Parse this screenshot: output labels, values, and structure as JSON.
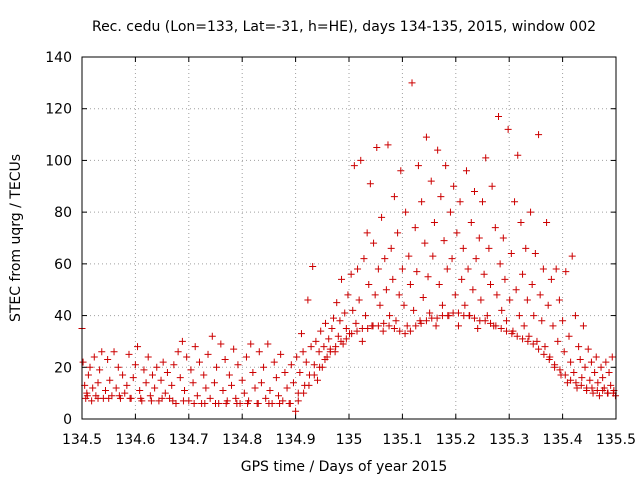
{
  "chart_data": {
    "type": "scatter",
    "title": "Rec. cedu (Lon=133, Lat=-31, h=HE), days 134-135, 2015, window 002",
    "xlabel": "GPS time / Days of year 2015",
    "ylabel": "STEC from uqrg / TECUs",
    "xlim": [
      134.5,
      135.5
    ],
    "ylim": [
      0,
      140
    ],
    "x_ticks": [
      "134.5",
      "134.6",
      "134.7",
      "134.8",
      "134.9",
      "135",
      "135.1",
      "135.2",
      "135.3",
      "135.4",
      "135.5"
    ],
    "y_ticks": [
      "0",
      "20",
      "40",
      "60",
      "80",
      "100",
      "120",
      "140"
    ],
    "grid": true,
    "marker": "+",
    "marker_color": "#cc0000",
    "grid_color": "#a0a0a0",
    "points": [
      [
        134.5,
        35
      ],
      [
        134.502,
        22
      ],
      [
        134.505,
        13
      ],
      [
        134.507,
        8
      ],
      [
        134.509,
        10
      ],
      [
        134.512,
        17
      ],
      [
        134.515,
        20
      ],
      [
        134.518,
        7
      ],
      [
        134.52,
        12
      ],
      [
        134.523,
        24
      ],
      [
        134.526,
        9
      ],
      [
        134.53,
        14
      ],
      [
        134.533,
        19
      ],
      [
        134.537,
        26
      ],
      [
        134.54,
        8
      ],
      [
        134.544,
        11
      ],
      [
        134.548,
        23
      ],
      [
        134.552,
        15
      ],
      [
        134.556,
        9
      ],
      [
        134.56,
        26
      ],
      [
        134.564,
        12
      ],
      [
        134.568,
        20
      ],
      [
        134.572,
        8
      ],
      [
        134.576,
        17
      ],
      [
        134.58,
        10
      ],
      [
        134.584,
        13
      ],
      [
        134.588,
        25
      ],
      [
        134.592,
        8
      ],
      [
        134.596,
        16
      ],
      [
        134.6,
        21
      ],
      [
        134.604,
        28
      ],
      [
        134.608,
        11
      ],
      [
        134.612,
        7
      ],
      [
        134.616,
        19
      ],
      [
        134.62,
        14
      ],
      [
        134.624,
        24
      ],
      [
        134.628,
        9
      ],
      [
        134.632,
        17
      ],
      [
        134.636,
        12
      ],
      [
        134.64,
        20
      ],
      [
        134.644,
        7
      ],
      [
        134.648,
        15
      ],
      [
        134.652,
        22
      ],
      [
        134.656,
        10
      ],
      [
        134.66,
        18
      ],
      [
        134.664,
        8
      ],
      [
        134.668,
        13
      ],
      [
        134.672,
        21
      ],
      [
        134.676,
        6
      ],
      [
        134.68,
        26
      ],
      [
        134.684,
        16
      ],
      [
        134.688,
        30
      ],
      [
        134.692,
        11
      ],
      [
        134.696,
        24
      ],
      [
        134.7,
        7
      ],
      [
        134.704,
        19
      ],
      [
        134.708,
        14
      ],
      [
        134.712,
        28
      ],
      [
        134.716,
        9
      ],
      [
        134.72,
        22
      ],
      [
        134.724,
        6
      ],
      [
        134.728,
        17
      ],
      [
        134.732,
        12
      ],
      [
        134.736,
        25
      ],
      [
        134.74,
        8
      ],
      [
        134.744,
        32
      ],
      [
        134.748,
        14
      ],
      [
        134.752,
        20
      ],
      [
        134.756,
        6
      ],
      [
        134.76,
        29
      ],
      [
        134.764,
        11
      ],
      [
        134.768,
        23
      ],
      [
        134.772,
        7
      ],
      [
        134.776,
        17
      ],
      [
        134.78,
        13
      ],
      [
        134.784,
        27
      ],
      [
        134.788,
        8
      ],
      [
        134.792,
        21
      ],
      [
        134.796,
        6
      ],
      [
        134.8,
        15
      ],
      [
        134.804,
        10
      ],
      [
        134.808,
        24
      ],
      [
        134.812,
        7
      ],
      [
        134.816,
        29
      ],
      [
        134.82,
        18
      ],
      [
        134.824,
        12
      ],
      [
        134.828,
        6
      ],
      [
        134.832,
        26
      ],
      [
        134.836,
        14
      ],
      [
        134.84,
        20
      ],
      [
        134.844,
        8
      ],
      [
        134.848,
        29
      ],
      [
        134.852,
        11
      ],
      [
        134.856,
        6
      ],
      [
        134.86,
        22
      ],
      [
        134.864,
        16
      ],
      [
        134.868,
        9
      ],
      [
        134.872,
        25
      ],
      [
        134.876,
        7
      ],
      [
        134.88,
        18
      ],
      [
        134.884,
        12
      ],
      [
        134.888,
        6
      ],
      [
        134.892,
        21
      ],
      [
        134.896,
        14
      ],
      [
        134.9,
        3
      ],
      [
        134.902,
        24
      ],
      [
        134.905,
        10
      ],
      [
        134.908,
        18
      ],
      [
        134.911,
        33
      ],
      [
        134.914,
        26
      ],
      [
        134.917,
        13
      ],
      [
        134.92,
        22
      ],
      [
        134.923,
        46
      ],
      [
        134.926,
        17
      ],
      [
        134.929,
        28
      ],
      [
        134.932,
        59
      ],
      [
        134.935,
        21
      ],
      [
        134.938,
        30
      ],
      [
        134.941,
        15
      ],
      [
        134.944,
        26
      ],
      [
        134.947,
        34
      ],
      [
        134.95,
        20
      ],
      [
        134.953,
        28
      ],
      [
        134.956,
        37
      ],
      [
        134.959,
        24
      ],
      [
        134.962,
        31
      ],
      [
        134.965,
        27
      ],
      [
        134.968,
        35
      ],
      [
        134.971,
        39
      ],
      [
        134.974,
        26
      ],
      [
        134.977,
        45
      ],
      [
        134.98,
        32
      ],
      [
        134.983,
        38
      ],
      [
        134.986,
        54
      ],
      [
        134.989,
        29
      ],
      [
        134.992,
        41
      ],
      [
        134.995,
        35
      ],
      [
        134.998,
        48
      ],
      [
        135.001,
        33
      ],
      [
        135.004,
        56
      ],
      [
        135.007,
        42
      ],
      [
        135.01,
        98
      ],
      [
        135.013,
        37
      ],
      [
        135.016,
        58
      ],
      [
        135.019,
        46
      ],
      [
        135.022,
        100
      ],
      [
        135.025,
        30
      ],
      [
        135.028,
        62
      ],
      [
        135.031,
        40
      ],
      [
        135.034,
        72
      ],
      [
        135.037,
        52
      ],
      [
        135.04,
        91
      ],
      [
        135.043,
        36
      ],
      [
        135.046,
        68
      ],
      [
        135.049,
        48
      ],
      [
        135.052,
        105
      ],
      [
        135.055,
        58
      ],
      [
        135.058,
        44
      ],
      [
        135.061,
        78
      ],
      [
        135.064,
        34
      ],
      [
        135.067,
        62
      ],
      [
        135.07,
        50
      ],
      [
        135.073,
        106
      ],
      [
        135.076,
        40
      ],
      [
        135.079,
        66
      ],
      [
        135.082,
        54
      ],
      [
        135.085,
        86
      ],
      [
        135.088,
        38
      ],
      [
        135.091,
        72
      ],
      [
        135.094,
        48
      ],
      [
        135.097,
        96
      ],
      [
        135.1,
        58
      ],
      [
        135.103,
        44
      ],
      [
        135.106,
        80
      ],
      [
        135.109,
        36
      ],
      [
        135.112,
        63
      ],
      [
        135.115,
        52
      ],
      [
        135.118,
        130
      ],
      [
        135.121,
        42
      ],
      [
        135.124,
        74
      ],
      [
        135.127,
        57
      ],
      [
        135.13,
        98
      ],
      [
        135.133,
        38
      ],
      [
        135.136,
        84
      ],
      [
        135.139,
        47
      ],
      [
        135.142,
        68
      ],
      [
        135.145,
        109
      ],
      [
        135.148,
        55
      ],
      [
        135.151,
        41
      ],
      [
        135.154,
        92
      ],
      [
        135.157,
        63
      ],
      [
        135.16,
        76
      ],
      [
        135.163,
        36
      ],
      [
        135.166,
        104
      ],
      [
        135.169,
        52
      ],
      [
        135.172,
        86
      ],
      [
        135.175,
        44
      ],
      [
        135.178,
        69
      ],
      [
        135.181,
        98
      ],
      [
        135.184,
        58
      ],
      [
        135.187,
        40
      ],
      [
        135.19,
        80
      ],
      [
        135.193,
        62
      ],
      [
        135.196,
        90
      ],
      [
        135.199,
        48
      ],
      [
        135.202,
        72
      ],
      [
        135.205,
        36
      ],
      [
        135.208,
        84
      ],
      [
        135.211,
        54
      ],
      [
        135.214,
        66
      ],
      [
        135.217,
        44
      ],
      [
        135.22,
        96
      ],
      [
        135.223,
        58
      ],
      [
        135.226,
        40
      ],
      [
        135.229,
        76
      ],
      [
        135.232,
        50
      ],
      [
        135.235,
        88
      ],
      [
        135.238,
        62
      ],
      [
        135.241,
        35
      ],
      [
        135.244,
        70
      ],
      [
        135.247,
        46
      ],
      [
        135.25,
        84
      ],
      [
        135.253,
        56
      ],
      [
        135.256,
        101
      ],
      [
        135.259,
        40
      ],
      [
        135.262,
        66
      ],
      [
        135.265,
        52
      ],
      [
        135.268,
        90
      ],
      [
        135.271,
        36
      ],
      [
        135.274,
        74
      ],
      [
        135.277,
        48
      ],
      [
        135.28,
        117
      ],
      [
        135.283,
        60
      ],
      [
        135.286,
        42
      ],
      [
        135.289,
        70
      ],
      [
        135.292,
        54
      ],
      [
        135.295,
        38
      ],
      [
        135.298,
        112
      ],
      [
        135.301,
        46
      ],
      [
        135.304,
        64
      ],
      [
        135.307,
        34
      ],
      [
        135.31,
        84
      ],
      [
        135.313,
        50
      ],
      [
        135.316,
        102
      ],
      [
        135.319,
        40
      ],
      [
        135.322,
        76
      ],
      [
        135.325,
        56
      ],
      [
        135.328,
        36
      ],
      [
        135.331,
        66
      ],
      [
        135.334,
        46
      ],
      [
        135.337,
        32
      ],
      [
        135.34,
        80
      ],
      [
        135.343,
        52
      ],
      [
        135.346,
        40
      ],
      [
        135.349,
        64
      ],
      [
        135.352,
        30
      ],
      [
        135.355,
        110
      ],
      [
        135.358,
        48
      ],
      [
        135.361,
        38
      ],
      [
        135.364,
        58
      ],
      [
        135.367,
        28
      ],
      [
        135.37,
        76
      ],
      [
        135.373,
        44
      ],
      [
        135.376,
        24
      ],
      [
        135.379,
        54
      ],
      [
        135.382,
        36
      ],
      [
        135.385,
        20
      ],
      [
        135.388,
        58
      ],
      [
        135.391,
        30
      ],
      [
        135.394,
        46
      ],
      [
        135.397,
        17
      ],
      [
        135.4,
        38
      ],
      [
        135.403,
        26
      ],
      [
        135.406,
        57
      ],
      [
        135.409,
        14
      ],
      [
        135.412,
        32
      ],
      [
        135.415,
        22
      ],
      [
        135.418,
        63
      ],
      [
        135.421,
        18
      ],
      [
        135.424,
        40
      ],
      [
        135.427,
        12
      ],
      [
        135.43,
        28
      ],
      [
        135.433,
        23
      ],
      [
        135.436,
        16
      ],
      [
        135.439,
        36
      ],
      [
        135.442,
        20
      ],
      [
        135.445,
        11
      ],
      [
        135.448,
        27
      ],
      [
        135.451,
        15
      ],
      [
        135.454,
        22
      ],
      [
        135.457,
        10
      ],
      [
        135.46,
        18
      ],
      [
        135.463,
        24
      ],
      [
        135.466,
        14
      ],
      [
        135.469,
        9
      ],
      [
        135.472,
        20
      ],
      [
        135.475,
        16
      ],
      [
        135.478,
        12
      ],
      [
        135.481,
        22
      ],
      [
        135.484,
        10
      ],
      [
        135.487,
        18
      ],
      [
        135.49,
        13
      ],
      [
        135.493,
        24
      ],
      [
        135.496,
        11
      ],
      [
        135.499,
        9
      ],
      [
        134.51,
        9
      ],
      [
        134.53,
        8
      ],
      [
        134.55,
        8
      ],
      [
        134.57,
        9
      ],
      [
        134.59,
        8
      ],
      [
        134.61,
        8
      ],
      [
        134.63,
        7
      ],
      [
        134.65,
        8
      ],
      [
        134.67,
        7
      ],
      [
        134.69,
        7
      ],
      [
        134.71,
        6
      ],
      [
        134.73,
        6
      ],
      [
        134.75,
        6
      ],
      [
        134.77,
        6
      ],
      [
        134.79,
        6
      ],
      [
        134.81,
        6
      ],
      [
        134.83,
        6
      ],
      [
        134.85,
        6
      ],
      [
        134.87,
        6
      ],
      [
        134.89,
        6
      ],
      [
        134.905,
        7
      ],
      [
        134.915,
        10
      ],
      [
        134.925,
        13
      ],
      [
        134.935,
        17
      ],
      [
        134.945,
        20
      ],
      [
        134.955,
        23
      ],
      [
        134.965,
        26
      ],
      [
        134.975,
        28
      ],
      [
        134.985,
        30
      ],
      [
        134.995,
        31
      ],
      [
        135.005,
        33
      ],
      [
        135.015,
        34
      ],
      [
        135.025,
        35
      ],
      [
        135.035,
        35
      ],
      [
        135.045,
        36
      ],
      [
        135.055,
        36
      ],
      [
        135.065,
        37
      ],
      [
        135.075,
        36
      ],
      [
        135.085,
        35
      ],
      [
        135.095,
        34
      ],
      [
        135.105,
        33
      ],
      [
        135.115,
        34
      ],
      [
        135.125,
        36
      ],
      [
        135.135,
        37
      ],
      [
        135.145,
        38
      ],
      [
        135.155,
        39
      ],
      [
        135.165,
        39
      ],
      [
        135.175,
        40
      ],
      [
        135.185,
        40
      ],
      [
        135.195,
        41
      ],
      [
        135.205,
        41
      ],
      [
        135.215,
        40
      ],
      [
        135.225,
        40
      ],
      [
        135.235,
        39
      ],
      [
        135.245,
        38
      ],
      [
        135.255,
        38
      ],
      [
        135.265,
        37
      ],
      [
        135.275,
        36
      ],
      [
        135.285,
        35
      ],
      [
        135.295,
        34
      ],
      [
        135.305,
        33
      ],
      [
        135.315,
        32
      ],
      [
        135.325,
        31
      ],
      [
        135.335,
        30
      ],
      [
        135.345,
        29
      ],
      [
        135.355,
        27
      ],
      [
        135.365,
        25
      ],
      [
        135.375,
        23
      ],
      [
        135.385,
        21
      ],
      [
        135.395,
        19
      ],
      [
        135.405,
        17
      ],
      [
        135.415,
        15
      ],
      [
        135.425,
        14
      ],
      [
        135.435,
        13
      ],
      [
        135.445,
        12
      ],
      [
        135.455,
        12
      ],
      [
        135.465,
        11
      ],
      [
        135.475,
        11
      ],
      [
        135.485,
        10
      ],
      [
        135.495,
        10
      ]
    ]
  }
}
